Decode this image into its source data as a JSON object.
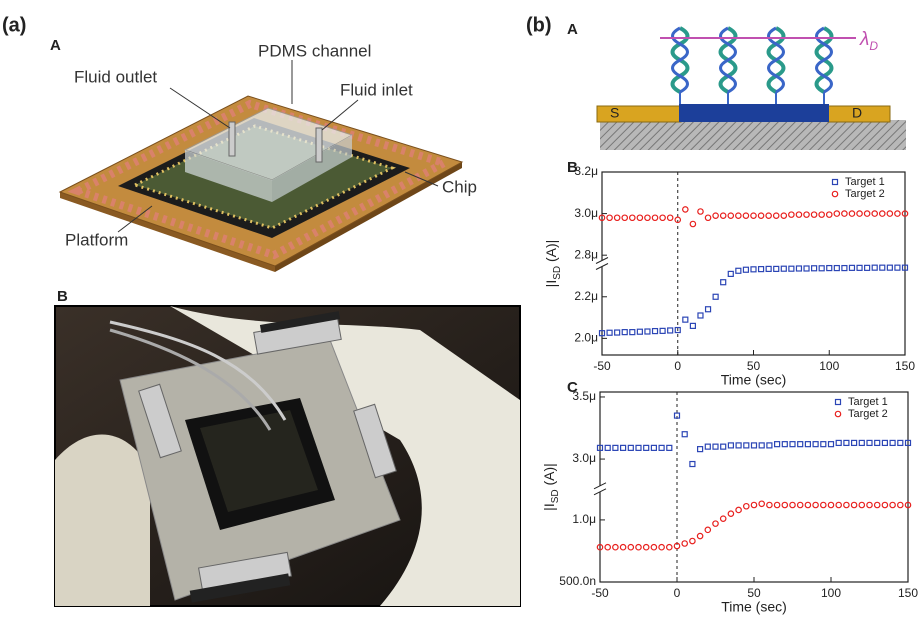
{
  "panel_a": {
    "label": "(a)",
    "A": {
      "label": "A",
      "callouts": [
        "PDMS channel",
        "Fluid outlet",
        "Fluid inlet",
        "Chip",
        "Platform"
      ]
    },
    "B": {
      "label": "B"
    }
  },
  "panel_b": {
    "label": "(b)",
    "A": {
      "label": "A",
      "lambda": "λ",
      "lambda_sub": "D",
      "source": "S",
      "drain": "D"
    }
  },
  "chart_data": [
    {
      "type": "scatter",
      "panel_label": "B",
      "xlabel": "Time (sec)",
      "ylabel_parts": [
        "|I",
        "SD",
        " (A)|"
      ],
      "x": [
        -50,
        -45,
        -40,
        -35,
        -30,
        -25,
        -20,
        -15,
        -10,
        -5,
        0,
        5,
        10,
        15,
        20,
        25,
        30,
        35,
        40,
        45,
        50,
        55,
        60,
        65,
        70,
        75,
        80,
        85,
        90,
        95,
        100,
        105,
        110,
        115,
        120,
        125,
        130,
        135,
        140,
        145,
        150
      ],
      "xlim": [
        -50,
        150
      ],
      "xticks": [
        -50,
        0,
        50,
        100,
        150
      ],
      "ylim": [
        1.92e-06,
        3.2e-06
      ],
      "ybreak": [
        2.36e-06,
        2.76e-06
      ],
      "yticks": [
        {
          "value": 2e-06,
          "label": "2.0μ"
        },
        {
          "value": 2.2e-06,
          "label": "2.2μ"
        },
        {
          "value": 2.8e-06,
          "label": "2.8μ"
        },
        {
          "value": 3e-06,
          "label": "3.0μ"
        },
        {
          "value": 3.2e-06,
          "label": "3.2μ"
        }
      ],
      "vline_x": 0,
      "legend": "upper right",
      "series": [
        {
          "name": "Target 1",
          "color": "#2b45b5",
          "marker": "square",
          "values": [
            2.025e-06,
            2.027e-06,
            2.028e-06,
            2.03e-06,
            2.03e-06,
            2.032e-06,
            2.033e-06,
            2.035e-06,
            2.036e-06,
            2.038e-06,
            2.04e-06,
            2.09e-06,
            2.06e-06,
            2.11e-06,
            2.14e-06,
            2.2e-06,
            2.27e-06,
            2.31e-06,
            2.325e-06,
            2.33e-06,
            2.332e-06,
            2.333e-06,
            2.334e-06,
            2.334e-06,
            2.335e-06,
            2.335e-06,
            2.336e-06,
            2.336e-06,
            2.337e-06,
            2.337e-06,
            2.338e-06,
            2.338e-06,
            2.338e-06,
            2.339e-06,
            2.339e-06,
            2.339e-06,
            2.34e-06,
            2.34e-06,
            2.34e-06,
            2.34e-06,
            2.34e-06
          ]
        },
        {
          "name": "Target 2",
          "color": "#e8201e",
          "marker": "circle",
          "values": [
            2.98e-06,
            2.98e-06,
            2.98e-06,
            2.98e-06,
            2.98e-06,
            2.98e-06,
            2.98e-06,
            2.98e-06,
            2.98e-06,
            2.98e-06,
            2.97e-06,
            3.02e-06,
            2.95e-06,
            3.01e-06,
            2.98e-06,
            2.99e-06,
            2.99e-06,
            2.99e-06,
            2.99e-06,
            2.99e-06,
            2.99e-06,
            2.99e-06,
            2.99e-06,
            2.99e-06,
            2.99e-06,
            2.995e-06,
            2.995e-06,
            2.995e-06,
            2.995e-06,
            2.995e-06,
            2.995e-06,
            3e-06,
            3e-06,
            3e-06,
            3e-06,
            3e-06,
            3e-06,
            3e-06,
            3e-06,
            3e-06,
            3e-06
          ]
        }
      ]
    },
    {
      "type": "scatter",
      "panel_label": "C",
      "xlabel": "Time (sec)",
      "ylabel_parts": [
        "|I",
        "SD",
        " (A)|"
      ],
      "x": [
        -50,
        -45,
        -40,
        -35,
        -30,
        -25,
        -20,
        -15,
        -10,
        -5,
        0,
        5,
        10,
        15,
        20,
        25,
        30,
        35,
        40,
        45,
        50,
        55,
        60,
        65,
        70,
        75,
        80,
        85,
        90,
        95,
        100,
        105,
        110,
        115,
        120,
        125,
        130,
        135,
        140,
        145,
        150
      ],
      "xlim": [
        -50,
        150
      ],
      "xticks": [
        -50,
        0,
        50,
        100,
        150
      ],
      "ylim": [
        5e-07,
        3.54e-06
      ],
      "ybreak": [
        1.25e-06,
        2.76e-06
      ],
      "yticks": [
        {
          "value": 5e-07,
          "label": "500.0n"
        },
        {
          "value": 1e-06,
          "label": "1.0μ"
        },
        {
          "value": 3e-06,
          "label": "3.0μ"
        },
        {
          "value": 3.5e-06,
          "label": "3.5μ"
        }
      ],
      "vline_x": 0,
      "legend": "upper right",
      "series": [
        {
          "name": "Target 1",
          "color": "#2b45b5",
          "marker": "square",
          "values": [
            3.09e-06,
            3.09e-06,
            3.09e-06,
            3.09e-06,
            3.09e-06,
            3.09e-06,
            3.09e-06,
            3.09e-06,
            3.09e-06,
            3.09e-06,
            3.35e-06,
            3.2e-06,
            2.96e-06,
            3.08e-06,
            3.1e-06,
            3.1e-06,
            3.1e-06,
            3.11e-06,
            3.11e-06,
            3.11e-06,
            3.11e-06,
            3.11e-06,
            3.11e-06,
            3.12e-06,
            3.12e-06,
            3.12e-06,
            3.12e-06,
            3.12e-06,
            3.12e-06,
            3.12e-06,
            3.12e-06,
            3.13e-06,
            3.13e-06,
            3.13e-06,
            3.13e-06,
            3.13e-06,
            3.13e-06,
            3.13e-06,
            3.13e-06,
            3.13e-06,
            3.13e-06
          ]
        },
        {
          "name": "Target 2",
          "color": "#e8201e",
          "marker": "circle",
          "values": [
            7.8e-07,
            7.8e-07,
            7.8e-07,
            7.8e-07,
            7.8e-07,
            7.8e-07,
            7.8e-07,
            7.8e-07,
            7.8e-07,
            7.8e-07,
            7.9e-07,
            8.1e-07,
            8.3e-07,
            8.7e-07,
            9.2e-07,
            9.7e-07,
            1.01e-06,
            1.05e-06,
            1.08e-06,
            1.11e-06,
            1.12e-06,
            1.13e-06,
            1.12e-06,
            1.12e-06,
            1.12e-06,
            1.12e-06,
            1.12e-06,
            1.12e-06,
            1.12e-06,
            1.12e-06,
            1.12e-06,
            1.12e-06,
            1.12e-06,
            1.12e-06,
            1.12e-06,
            1.12e-06,
            1.12e-06,
            1.12e-06,
            1.12e-06,
            1.12e-06,
            1.12e-06
          ]
        }
      ]
    }
  ]
}
